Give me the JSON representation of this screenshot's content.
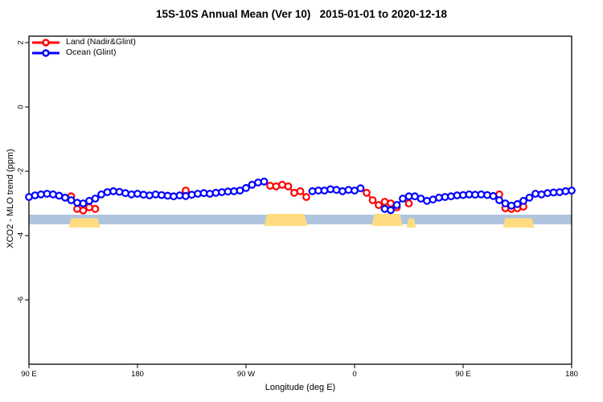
{
  "title": "15S-10S Annual Mean (Ver 10)   2015-01-01 to 2020-12-18",
  "chart_data": {
    "type": "line",
    "title": "15S-10S Annual Mean (Ver 10)   2015-01-01 to 2020-12-18",
    "xlabel": "Longitude (deg E)",
    "ylabel": "XCO2 - MLO trend (ppm)",
    "xlim": [
      90,
      540
    ],
    "ylim": [
      -8,
      2.2
    ],
    "grid": false,
    "legend_position": "top-left-inside-no-box",
    "x_ticks": [
      {
        "value": 90,
        "label": "90 E"
      },
      {
        "value": 180,
        "label": "180"
      },
      {
        "value": 270,
        "label": "90 W"
      },
      {
        "value": 360,
        "label": "0"
      },
      {
        "value": 450,
        "label": "90 E"
      },
      {
        "value": 540,
        "label": "180"
      }
    ],
    "y_ticks": [
      {
        "value": 2,
        "label": "2"
      },
      {
        "value": 0,
        "label": "0"
      },
      {
        "value": -2,
        "label": "-2"
      },
      {
        "value": -4,
        "label": "-4"
      },
      {
        "value": -6,
        "label": "-6"
      }
    ],
    "series": [
      {
        "name": "Land (Nadir&Glint)",
        "color": "#ff0000",
        "marker": "open-circle",
        "segments": [
          [
            [
              125,
              -2.78
            ],
            [
              130,
              -3.17
            ],
            [
              135,
              -3.22
            ],
            [
              140,
              -3.12
            ],
            [
              145,
              -3.17
            ]
          ],
          [
            [
              220,
              -2.6
            ]
          ],
          [
            [
              290,
              -2.45
            ],
            [
              295,
              -2.47
            ],
            [
              300,
              -2.42
            ],
            [
              305,
              -2.47
            ],
            [
              310,
              -2.67
            ],
            [
              315,
              -2.62
            ],
            [
              320,
              -2.8
            ]
          ],
          [
            [
              370,
              -2.67
            ],
            [
              375,
              -2.9
            ],
            [
              380,
              -3.05
            ],
            [
              385,
              -2.95
            ],
            [
              390,
              -3.0
            ],
            [
              395,
              -3.12
            ]
          ],
          [
            [
              405,
              -3.0
            ]
          ],
          [
            [
              480,
              -2.72
            ],
            [
              485,
              -3.15
            ],
            [
              490,
              -3.17
            ],
            [
              495,
              -3.15
            ],
            [
              500,
              -3.1
            ]
          ]
        ]
      },
      {
        "name": "Ocean (Glint)",
        "color": "#0000ff",
        "marker": "open-circle",
        "segments": [
          [
            [
              90,
              -2.8
            ],
            [
              95,
              -2.75
            ],
            [
              100,
              -2.72
            ],
            [
              105,
              -2.7
            ],
            [
              110,
              -2.72
            ],
            [
              115,
              -2.76
            ],
            [
              120,
              -2.82
            ],
            [
              125,
              -2.9
            ],
            [
              130,
              -2.98
            ],
            [
              135,
              -3.0
            ],
            [
              140,
              -2.92
            ],
            [
              145,
              -2.85
            ],
            [
              150,
              -2.72
            ],
            [
              155,
              -2.65
            ],
            [
              160,
              -2.62
            ],
            [
              165,
              -2.64
            ],
            [
              170,
              -2.68
            ],
            [
              175,
              -2.72
            ],
            [
              180,
              -2.7
            ],
            [
              185,
              -2.73
            ],
            [
              190,
              -2.75
            ],
            [
              195,
              -2.72
            ],
            [
              200,
              -2.74
            ],
            [
              205,
              -2.76
            ],
            [
              210,
              -2.78
            ],
            [
              215,
              -2.75
            ],
            [
              220,
              -2.77
            ],
            [
              225,
              -2.73
            ],
            [
              230,
              -2.7
            ],
            [
              235,
              -2.68
            ],
            [
              240,
              -2.7
            ],
            [
              245,
              -2.67
            ],
            [
              250,
              -2.65
            ],
            [
              255,
              -2.63
            ],
            [
              260,
              -2.62
            ],
            [
              265,
              -2.6
            ],
            [
              270,
              -2.52
            ],
            [
              275,
              -2.42
            ],
            [
              280,
              -2.35
            ],
            [
              285,
              -2.32
            ]
          ],
          [
            [
              325,
              -2.62
            ],
            [
              330,
              -2.6
            ],
            [
              335,
              -2.6
            ],
            [
              340,
              -2.56
            ],
            [
              345,
              -2.58
            ],
            [
              350,
              -2.62
            ],
            [
              355,
              -2.58
            ],
            [
              360,
              -2.6
            ],
            [
              365,
              -2.53
            ]
          ],
          [
            [
              385,
              -3.17
            ],
            [
              390,
              -3.21
            ],
            [
              395,
              -3.05
            ],
            [
              400,
              -2.85
            ],
            [
              405,
              -2.78
            ],
            [
              410,
              -2.78
            ],
            [
              415,
              -2.85
            ],
            [
              420,
              -2.92
            ],
            [
              425,
              -2.88
            ],
            [
              430,
              -2.82
            ],
            [
              435,
              -2.8
            ],
            [
              440,
              -2.78
            ],
            [
              445,
              -2.75
            ],
            [
              450,
              -2.74
            ],
            [
              455,
              -2.72
            ],
            [
              460,
              -2.73
            ],
            [
              465,
              -2.72
            ],
            [
              470,
              -2.74
            ],
            [
              475,
              -2.77
            ],
            [
              480,
              -2.9
            ],
            [
              485,
              -3.0
            ],
            [
              490,
              -3.07
            ],
            [
              495,
              -3.02
            ],
            [
              500,
              -2.92
            ],
            [
              505,
              -2.82
            ],
            [
              510,
              -2.7
            ],
            [
              515,
              -2.72
            ],
            [
              520,
              -2.68
            ],
            [
              525,
              -2.66
            ],
            [
              530,
              -2.65
            ],
            [
              535,
              -2.62
            ],
            [
              540,
              -2.6
            ]
          ]
        ]
      }
    ],
    "surface_strip": {
      "description": "land/ocean map band along latitude 15S-10S",
      "ocean_color": "#b0c4de",
      "land_color": "#ffdc7f",
      "band_y": [
        -3.35,
        -3.65
      ],
      "ocean_range": [
        90,
        540
      ],
      "land_segments": [
        {
          "range": [
            123,
            149
          ],
          "style": "partial"
        },
        {
          "range": [
            285,
            321
          ],
          "style": "full"
        },
        {
          "range": [
            374,
            400
          ],
          "style": "full"
        },
        {
          "range": [
            403,
            411
          ],
          "style": "partial"
        },
        {
          "range": [
            483,
            509
          ],
          "style": "partial"
        }
      ]
    }
  }
}
